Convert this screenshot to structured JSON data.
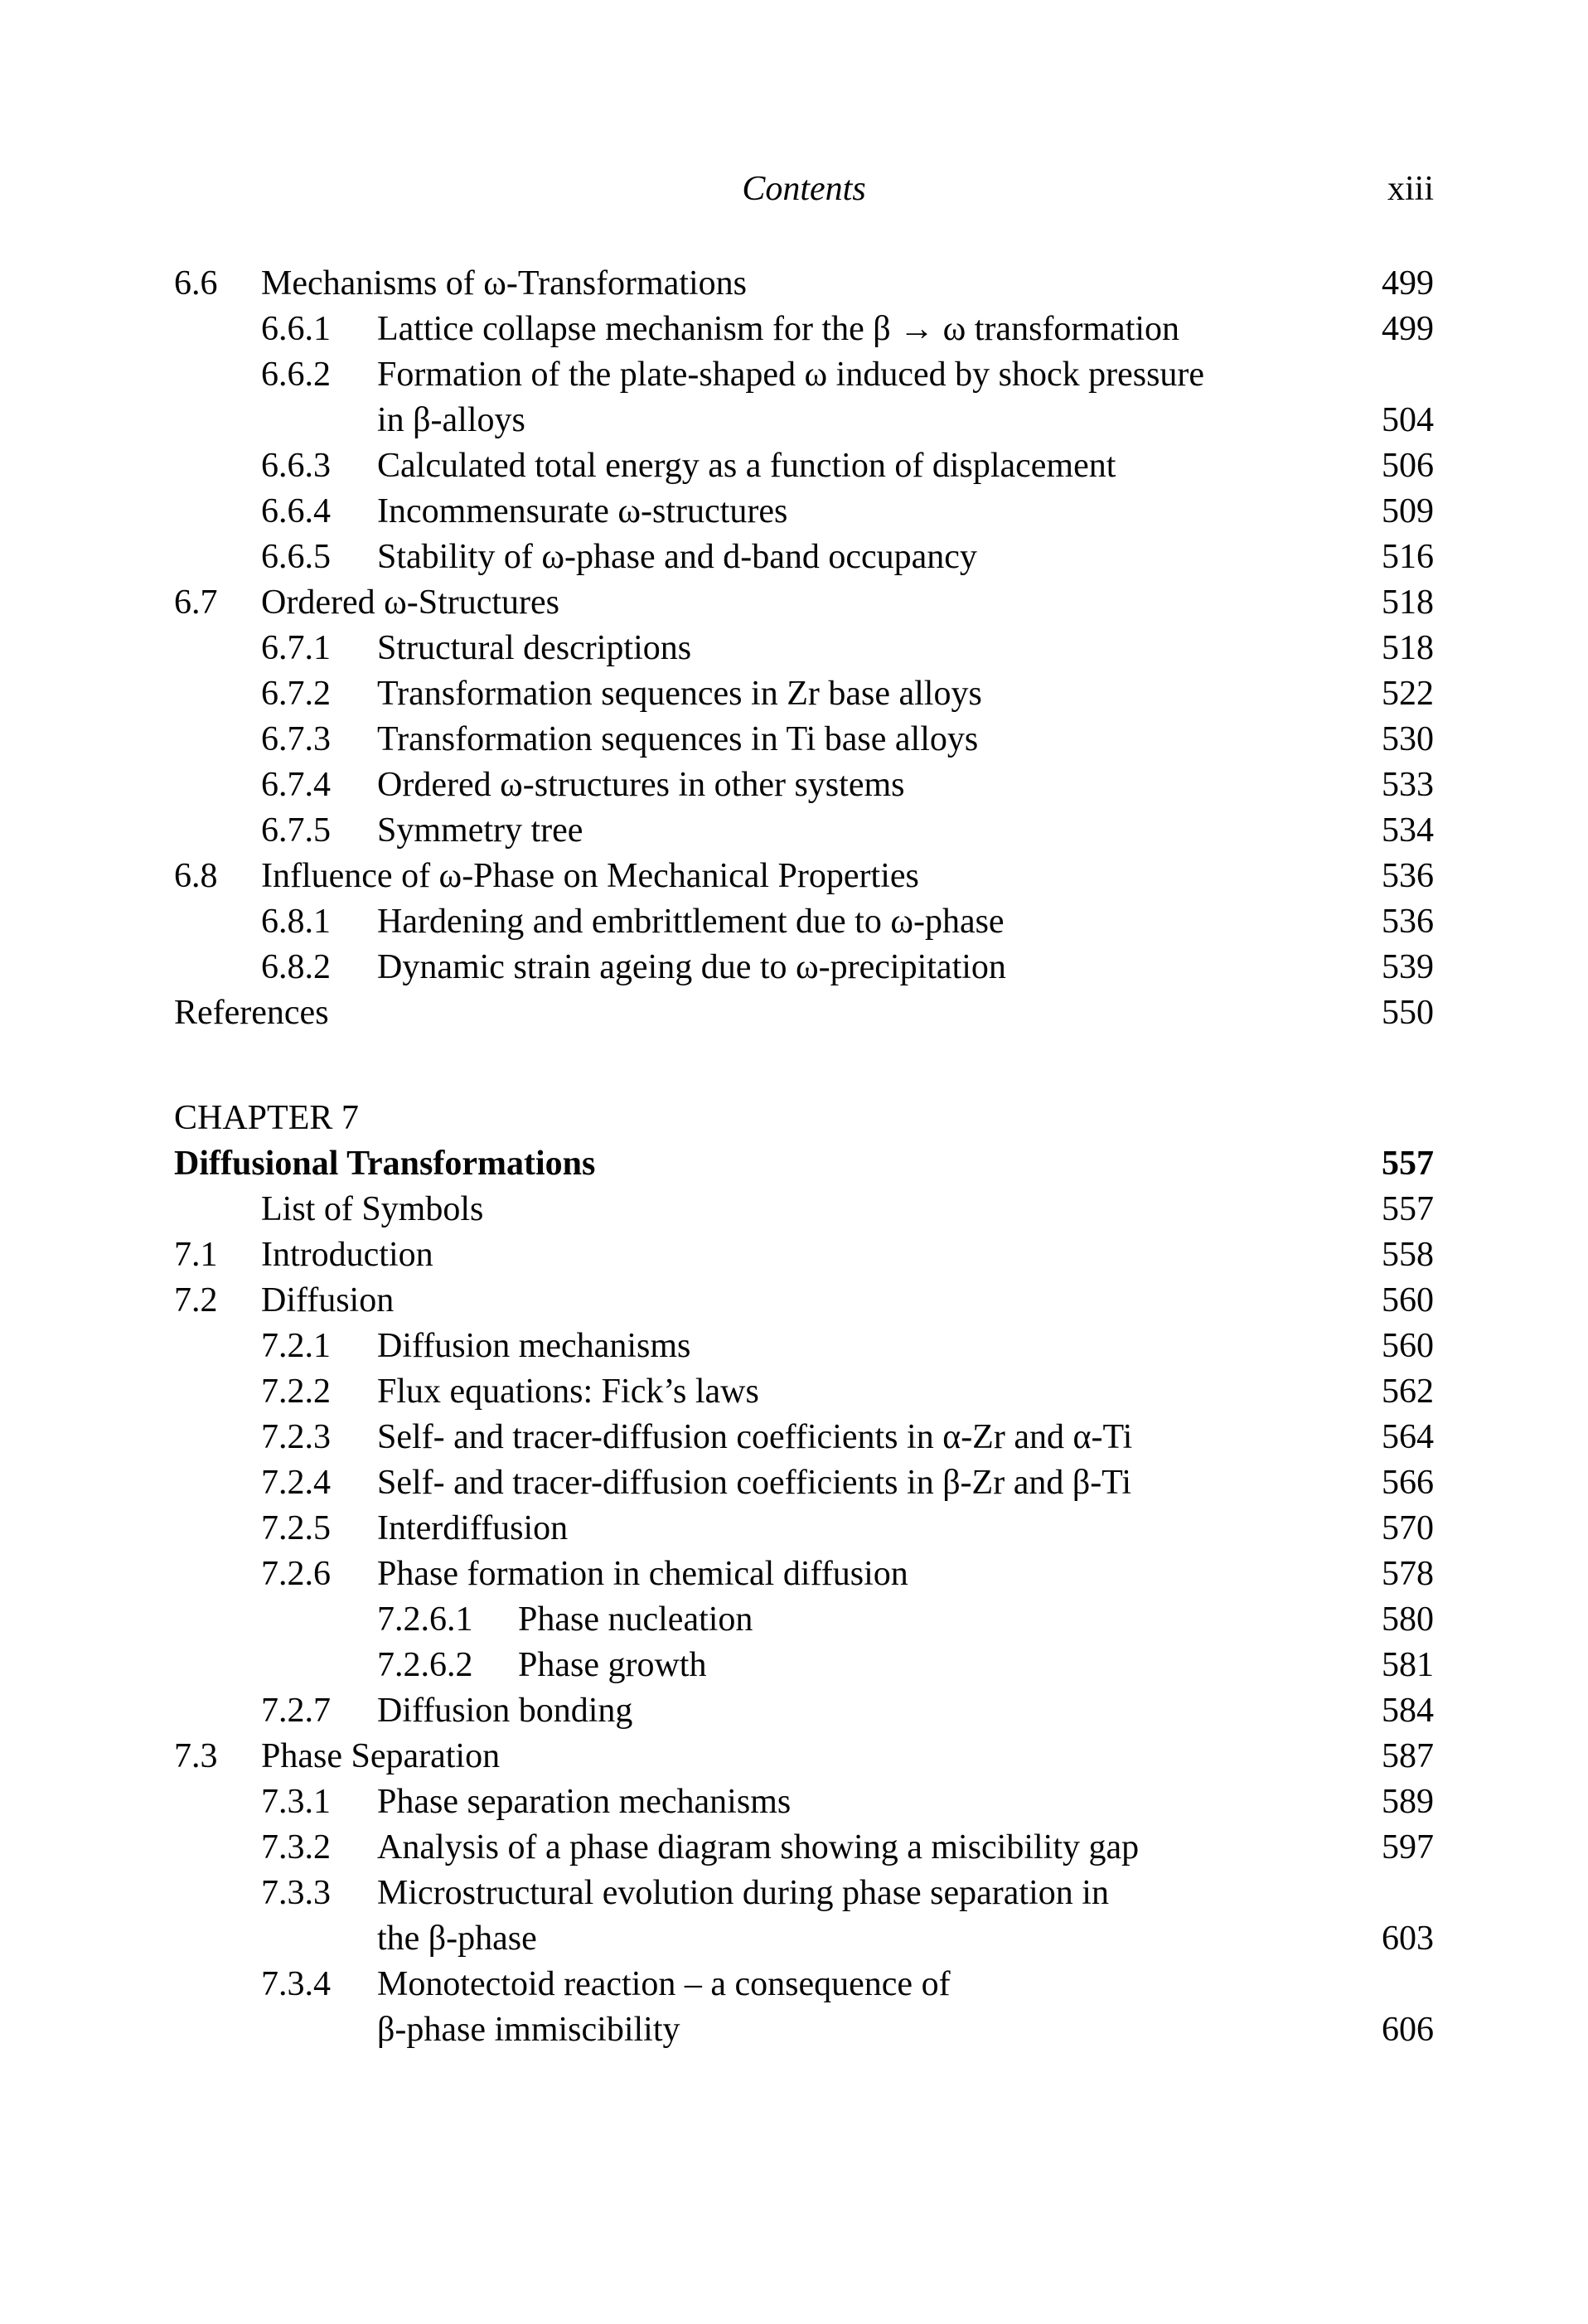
{
  "header": {
    "running_title": "Contents",
    "folio": "xiii"
  },
  "toc": {
    "entries": [
      {
        "level": 1,
        "number": "6.6",
        "title_lines": [
          "Mechanisms of ω-Transformations"
        ],
        "page": "499"
      },
      {
        "level": 2,
        "number": "6.6.1",
        "title_lines": [
          "Lattice collapse mechanism for the β → ω transformation"
        ],
        "page": "499"
      },
      {
        "level": 2,
        "number": "6.6.2",
        "title_lines": [
          "Formation of the plate-shaped ω induced by shock pressure",
          "in β-alloys"
        ],
        "page": "504"
      },
      {
        "level": 2,
        "number": "6.6.3",
        "title_lines": [
          "Calculated total energy as a function of displacement"
        ],
        "page": "506"
      },
      {
        "level": 2,
        "number": "6.6.4",
        "title_lines": [
          "Incommensurate ω-structures"
        ],
        "page": "509"
      },
      {
        "level": 2,
        "number": "6.6.5",
        "title_lines": [
          "Stability of ω-phase and d-band occupancy"
        ],
        "page": "516"
      },
      {
        "level": 1,
        "number": "6.7",
        "title_lines": [
          "Ordered ω-Structures"
        ],
        "page": "518"
      },
      {
        "level": 2,
        "number": "6.7.1",
        "title_lines": [
          "Structural descriptions"
        ],
        "page": "518"
      },
      {
        "level": 2,
        "number": "6.7.2",
        "title_lines": [
          "Transformation sequences in Zr base alloys"
        ],
        "page": "522"
      },
      {
        "level": 2,
        "number": "6.7.3",
        "title_lines": [
          "Transformation sequences in Ti base alloys"
        ],
        "page": "530"
      },
      {
        "level": 2,
        "number": "6.7.4",
        "title_lines": [
          "Ordered ω-structures in other systems"
        ],
        "page": "533"
      },
      {
        "level": 2,
        "number": "6.7.5",
        "title_lines": [
          "Symmetry tree"
        ],
        "page": "534"
      },
      {
        "level": 1,
        "number": "6.8",
        "title_lines": [
          "Influence of ω-Phase on Mechanical Properties"
        ],
        "page": "536"
      },
      {
        "level": 2,
        "number": "6.8.1",
        "title_lines": [
          "Hardening and embrittlement due to ω-phase"
        ],
        "page": "536"
      },
      {
        "level": 2,
        "number": "6.8.2",
        "title_lines": [
          "Dynamic strain ageing due to ω-precipitation"
        ],
        "page": "539"
      },
      {
        "level": 0,
        "number": "",
        "title_lines": [
          "References"
        ],
        "page": "550"
      },
      {
        "level": 0,
        "number": "",
        "title_lines": [
          "CHAPTER 7"
        ],
        "page": "",
        "gap_before": true
      },
      {
        "level": 0,
        "number": "",
        "title_lines": [
          "Diffusional Transformations"
        ],
        "page": "557",
        "bold": true
      },
      {
        "level": 1,
        "number": "",
        "title_lines": [
          "List of Symbols"
        ],
        "page": "557"
      },
      {
        "level": 1,
        "number": "7.1",
        "title_lines": [
          "Introduction"
        ],
        "page": "558"
      },
      {
        "level": 1,
        "number": "7.2",
        "title_lines": [
          "Diffusion"
        ],
        "page": "560"
      },
      {
        "level": 2,
        "number": "7.2.1",
        "title_lines": [
          "Diffusion mechanisms"
        ],
        "page": "560"
      },
      {
        "level": 2,
        "number": "7.2.2",
        "title_lines": [
          "Flux equations: Fick’s laws"
        ],
        "page": "562"
      },
      {
        "level": 2,
        "number": "7.2.3",
        "title_lines": [
          "Self- and tracer-diffusion coefficients in α-Zr and α-Ti"
        ],
        "page": "564"
      },
      {
        "level": 2,
        "number": "7.2.4",
        "title_lines": [
          "Self- and tracer-diffusion coefficients in β-Zr and β-Ti"
        ],
        "page": "566"
      },
      {
        "level": 2,
        "number": "7.2.5",
        "title_lines": [
          "Interdiffusion"
        ],
        "page": "570"
      },
      {
        "level": 2,
        "number": "7.2.6",
        "title_lines": [
          "Phase formation in chemical diffusion"
        ],
        "page": "578"
      },
      {
        "level": 3,
        "number": "7.2.6.1",
        "title_lines": [
          "Phase nucleation"
        ],
        "page": "580"
      },
      {
        "level": 3,
        "number": "7.2.6.2",
        "title_lines": [
          "Phase growth"
        ],
        "page": "581"
      },
      {
        "level": 2,
        "number": "7.2.7",
        "title_lines": [
          "Diffusion bonding"
        ],
        "page": "584"
      },
      {
        "level": 1,
        "number": "7.3",
        "title_lines": [
          "Phase Separation"
        ],
        "page": "587"
      },
      {
        "level": 2,
        "number": "7.3.1",
        "title_lines": [
          "Phase separation mechanisms"
        ],
        "page": "589"
      },
      {
        "level": 2,
        "number": "7.3.2",
        "title_lines": [
          "Analysis of a phase diagram showing a miscibility gap"
        ],
        "page": "597"
      },
      {
        "level": 2,
        "number": "7.3.3",
        "title_lines": [
          "Microstructural evolution during phase separation in",
          "the β-phase"
        ],
        "page": "603"
      },
      {
        "level": 2,
        "number": "7.3.4",
        "title_lines": [
          "Monotectoid reaction – a consequence of",
          "β-phase immiscibility"
        ],
        "page": "606"
      }
    ]
  }
}
